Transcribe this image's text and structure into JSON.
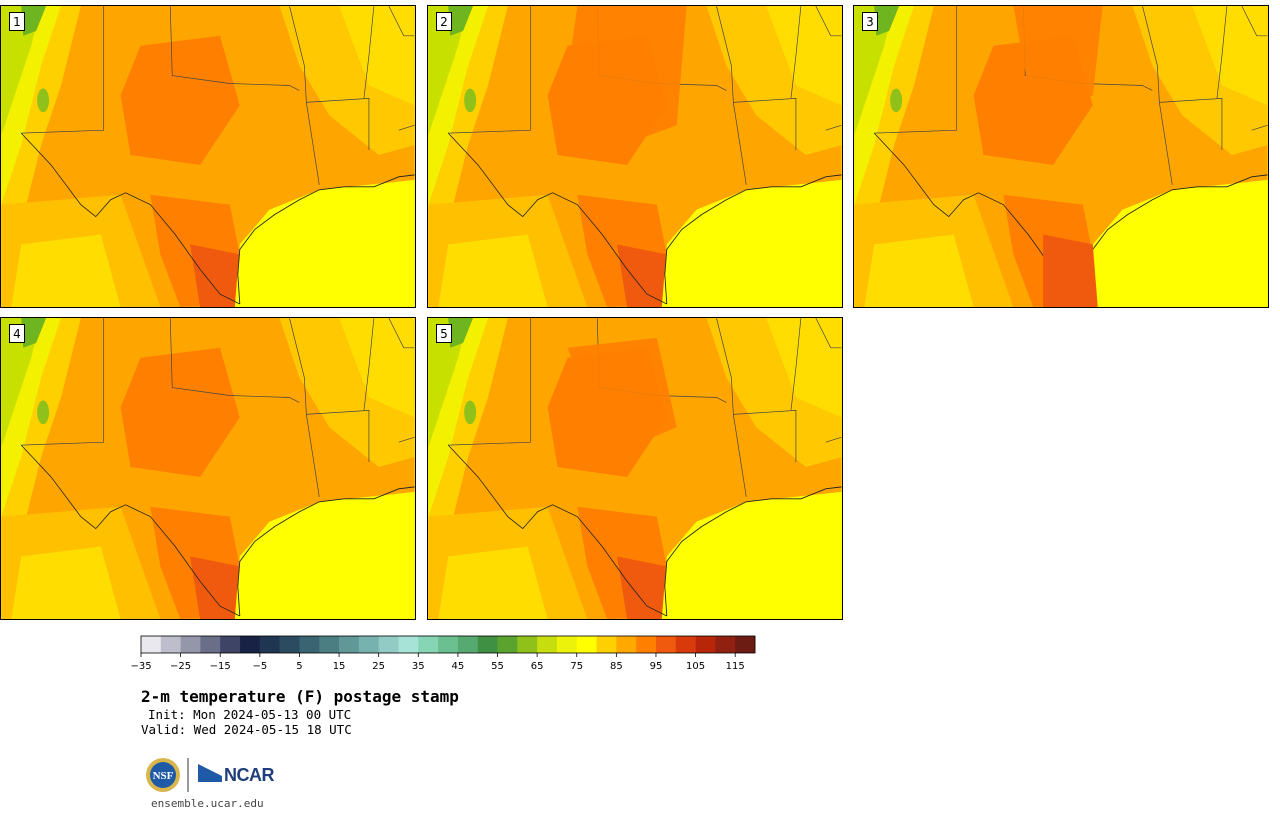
{
  "panels": [
    {
      "label": "1"
    },
    {
      "label": "2"
    },
    {
      "label": "3"
    },
    {
      "label": "4"
    },
    {
      "label": "5"
    }
  ],
  "colorbar": {
    "ticks": [
      "−35",
      "−25",
      "−15",
      "−5",
      "5",
      "15",
      "25",
      "35",
      "45",
      "55",
      "65",
      "75",
      "85",
      "95",
      "105",
      "115"
    ],
    "colors": [
      "#e8e8ee",
      "#bdbdcc",
      "#9496a9",
      "#6b6e88",
      "#3e4466",
      "#182244",
      "#1f3652",
      "#2b4b61",
      "#3a6472",
      "#4a7e83",
      "#5f9896",
      "#78b2ae",
      "#92cac5",
      "#a7e4d7",
      "#86d5b4",
      "#6cbf90",
      "#56a970",
      "#3f9043",
      "#5aa32c",
      "#8fc11a",
      "#c6de0d",
      "#ecf20a",
      "#ffff00",
      "#ffd000",
      "#ffa800",
      "#ff8000",
      "#f05a0e",
      "#d83a0c",
      "#b8260a",
      "#922010",
      "#6c1c12"
    ]
  },
  "title": "2-m temperature (F) postage stamp",
  "init": "Init: Mon 2024-05-13 00 UTC",
  "valid": "Valid: Wed 2024-05-15 18 UTC",
  "logos": {
    "nsf": "NSF",
    "ncar": "NCAR"
  },
  "site": "ensemble.ucar.edu"
}
